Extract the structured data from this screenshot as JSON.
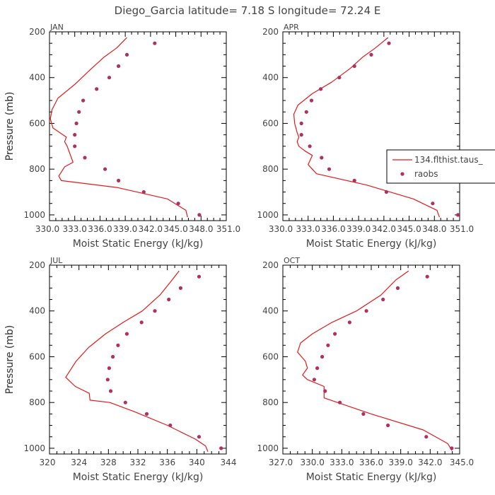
{
  "figure_title": "Diego_Garcia  latitude= 7.18 S longitude= 72.24 E",
  "legend": {
    "model_label": "134.flthist.taus_",
    "obs_label": "raobs"
  },
  "colors": {
    "line": "#e31a1c",
    "marker": "#b03060",
    "axis": "#000000",
    "text": "#444444"
  },
  "chart_data": [
    {
      "type": "line",
      "title": "JAN",
      "xlabel": "Moist Static Energy (kJ/kg)",
      "ylabel": "Pressure (mb)",
      "xlim": [
        330.0,
        351.0
      ],
      "xticks": [
        330.0,
        333.0,
        336.0,
        339.0,
        342.0,
        345.0,
        348.0,
        351.0
      ],
      "xtick_labels": [
        "330.0",
        "333.0",
        "336.0",
        "339.0",
        "342.0",
        "345.0",
        "348.0",
        "351.0"
      ],
      "ylim": [
        1025,
        200
      ],
      "yticks": [
        200,
        400,
        600,
        800,
        1000
      ],
      "ytick_labels": [
        "200",
        "400",
        "600",
        "800",
        "1000"
      ],
      "series": [
        {
          "name": "134.flthist.taus_",
          "kind": "line",
          "x": [
            339.2,
            338.0,
            336.5,
            335.0,
            333.0,
            331.0,
            330.3,
            330.1,
            330.4,
            331.2,
            332.0,
            331.8,
            332.1,
            332.8,
            331.8,
            331.1,
            331.4,
            338.0,
            344.0,
            346.2,
            346.4
          ],
          "y": [
            225,
            270,
            310,
            360,
            430,
            490,
            540,
            580,
            620,
            640,
            660,
            680,
            700,
            770,
            790,
            830,
            850,
            880,
            930,
            980,
            1010
          ]
        },
        {
          "name": "raobs",
          "kind": "scatter",
          "x": [
            342.5,
            339.2,
            338.2,
            337.1,
            335.6,
            334.0,
            333.5,
            333.2,
            333.0,
            333.0,
            334.2,
            336.6,
            338.2,
            341.2,
            345.3,
            347.8
          ],
          "y": [
            250,
            300,
            350,
            400,
            450,
            500,
            550,
            600,
            650,
            700,
            750,
            800,
            850,
            900,
            950,
            1000
          ]
        }
      ]
    },
    {
      "type": "line",
      "title": "APR",
      "xlabel": "Moist Static Energy (kJ/kg)",
      "ylabel": "Pressure (mb)",
      "xlim": [
        330.0,
        351.0
      ],
      "xticks": [
        330.0,
        333.0,
        336.0,
        339.0,
        342.0,
        345.0,
        348.0,
        351.0
      ],
      "xtick_labels": [
        "330.0",
        "333.0",
        "336.0",
        "339.0",
        "342.0",
        "345.0",
        "348.0",
        "351.0"
      ],
      "ylim": [
        1025,
        200
      ],
      "yticks": [
        200,
        400,
        600,
        800,
        1000
      ],
      "ytick_labels": [
        "200",
        "400",
        "600",
        "800",
        "1000"
      ],
      "series": [
        {
          "name": "134.flthist.taus_",
          "kind": "line",
          "x": [
            342.5,
            341.0,
            339.5,
            338.0,
            335.8,
            333.5,
            331.8,
            331.3,
            331.4,
            331.7,
            331.9,
            331.7,
            331.9,
            332.6,
            333.5,
            333.0,
            334.0,
            340.0,
            345.5,
            348.3,
            348.6
          ],
          "y": [
            225,
            270,
            310,
            360,
            420,
            470,
            520,
            560,
            600,
            640,
            660,
            680,
            700,
            720,
            740,
            780,
            820,
            870,
            930,
            980,
            1010
          ]
        },
        {
          "name": "raobs",
          "kind": "scatter",
          "x": [
            342.6,
            340.5,
            338.5,
            336.7,
            334.5,
            333.4,
            332.8,
            332.2,
            332.2,
            333.2,
            334.6,
            335.5,
            338.5,
            342.3,
            347.8,
            350.8
          ],
          "y": [
            250,
            300,
            350,
            400,
            450,
            500,
            550,
            600,
            650,
            700,
            750,
            800,
            850,
            900,
            950,
            1000
          ]
        }
      ]
    },
    {
      "type": "line",
      "title": "JUL",
      "xlabel": "Moist Static Energy (kJ/kg)",
      "ylabel": "Pressure (mb)",
      "xlim": [
        320,
        344
      ],
      "xticks": [
        320,
        324,
        328,
        332,
        336,
        340,
        344
      ],
      "xtick_labels": [
        "320",
        "324",
        "328",
        "332",
        "336",
        "340",
        "344"
      ],
      "ylim": [
        1025,
        200
      ],
      "yticks": [
        200,
        400,
        600,
        800,
        1000
      ],
      "ytick_labels": [
        "200",
        "400",
        "600",
        "800",
        "1000"
      ],
      "series": [
        {
          "name": "134.flthist.taus_",
          "kind": "line",
          "x": [
            337.6,
            336.5,
            335.0,
            332.6,
            330.0,
            327.6,
            325.3,
            323.6,
            322.2,
            323.5,
            325.4,
            325.5,
            328.2,
            331.5,
            336.0,
            339.8,
            341.2,
            341.5
          ],
          "y": [
            225,
            270,
            330,
            400,
            450,
            500,
            560,
            620,
            690,
            730,
            760,
            790,
            800,
            840,
            900,
            960,
            990,
            1015
          ]
        },
        {
          "name": "raobs",
          "kind": "scatter",
          "x": [
            340.3,
            337.8,
            336.2,
            334.3,
            332.5,
            330.5,
            329.3,
            328.6,
            328.1,
            327.9,
            328.3,
            330.3,
            333.2,
            336.4,
            340.3,
            343.3
          ],
          "y": [
            250,
            300,
            350,
            400,
            450,
            500,
            550,
            600,
            650,
            700,
            750,
            800,
            850,
            900,
            950,
            1000
          ]
        }
      ]
    },
    {
      "type": "line",
      "title": "OCT",
      "xlabel": "Moist Static Energy (kJ/kg)",
      "ylabel": "Pressure (mb)",
      "xlim": [
        327.0,
        345.0
      ],
      "xticks": [
        327.0,
        330.0,
        333.0,
        336.0,
        339.0,
        342.0,
        345.0
      ],
      "xtick_labels": [
        "327.0",
        "330.0",
        "333.0",
        "336.0",
        "339.0",
        "342.0",
        "345.0"
      ],
      "ylim": [
        1025,
        200
      ],
      "yticks": [
        200,
        400,
        600,
        800,
        1000
      ],
      "ytick_labels": [
        "200",
        "400",
        "600",
        "800",
        "1000"
      ],
      "series": [
        {
          "name": "134.flthist.taus_",
          "kind": "line",
          "x": [
            339.8,
            338.5,
            337.0,
            334.5,
            332.0,
            330.0,
            328.8,
            328.5,
            329.3,
            329.5,
            329.0,
            329.5,
            331.2,
            331.2,
            336.0,
            341.3,
            343.8,
            344.2
          ],
          "y": [
            225,
            265,
            330,
            400,
            450,
            500,
            540,
            580,
            620,
            650,
            680,
            700,
            730,
            780,
            850,
            920,
            980,
            1010
          ]
        },
        {
          "name": "raobs",
          "kind": "scatter",
          "x": [
            341.7,
            338.7,
            337.2,
            335.5,
            333.8,
            332.3,
            331.6,
            331.0,
            330.5,
            330.2,
            331.3,
            332.8,
            335.2,
            337.7,
            341.6,
            344.2
          ],
          "y": [
            250,
            300,
            350,
            400,
            450,
            500,
            550,
            600,
            650,
            700,
            750,
            800,
            850,
            900,
            950,
            1000
          ]
        }
      ]
    }
  ]
}
